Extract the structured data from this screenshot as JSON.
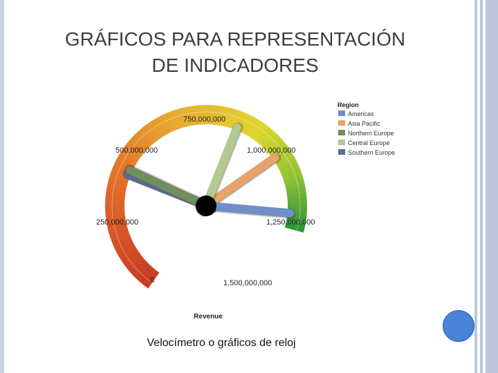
{
  "slide": {
    "title_line1": "GRÁFICOS PARA REPRESENTACIÓN",
    "title_line2": "DE INDICADORES",
    "caption": "Velocímetro o gráficos de reloj"
  },
  "chart_data": {
    "type": "gauge",
    "xlabel": "Revenue",
    "scale_min": 0,
    "scale_max": 1500000000,
    "ticks": [
      {
        "value": 0,
        "label": "0"
      },
      {
        "value": 250000000,
        "label": "250,000,000"
      },
      {
        "value": 500000000,
        "label": "500,000,000"
      },
      {
        "value": 750000000,
        "label": "750,000,000"
      },
      {
        "value": 1000000000,
        "label": "1,000,000,000"
      },
      {
        "value": 1250000000,
        "label": "1,250,000,000"
      },
      {
        "value": 1500000000,
        "label": "1,500,000,000"
      }
    ],
    "legend": {
      "title": "Region",
      "placement": "top-right"
    },
    "series": [
      {
        "name": "Americas",
        "color": "#6f8fc9",
        "value": 1440000000
      },
      {
        "name": "Asia Pacific",
        "color": "#e8a36a",
        "value": 1200000000
      },
      {
        "name": "Northern Europe",
        "color": "#6f8e5e",
        "value": 480000000
      },
      {
        "name": "Central Europe",
        "color": "#b3c98f",
        "value": 1000000000
      },
      {
        "name": "Southern Europe",
        "color": "#5b6a96",
        "value": 460000000
      }
    ]
  }
}
